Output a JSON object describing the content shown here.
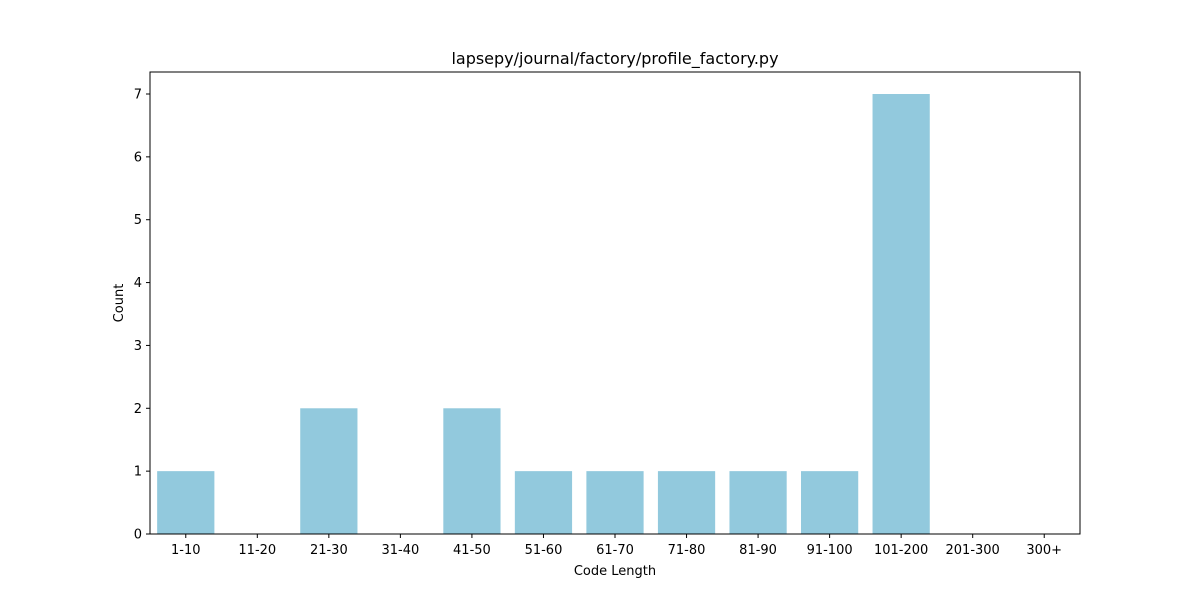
{
  "chart_data": {
    "type": "bar",
    "title": "lapsepy/journal/factory/profile_factory.py",
    "xlabel": "Code Length",
    "ylabel": "Count",
    "categories": [
      "1-10",
      "11-20",
      "21-30",
      "31-40",
      "41-50",
      "51-60",
      "61-70",
      "71-80",
      "81-90",
      "91-100",
      "101-200",
      "201-300",
      "300+"
    ],
    "values": [
      1,
      0,
      2,
      0,
      2,
      1,
      1,
      1,
      1,
      1,
      7,
      0,
      0
    ],
    "ylim": [
      0,
      7.35
    ],
    "yticks": [
      0,
      1,
      2,
      3,
      4,
      5,
      6,
      7
    ],
    "bar_color": "#92C9DD",
    "grid": false,
    "legend": "none"
  }
}
